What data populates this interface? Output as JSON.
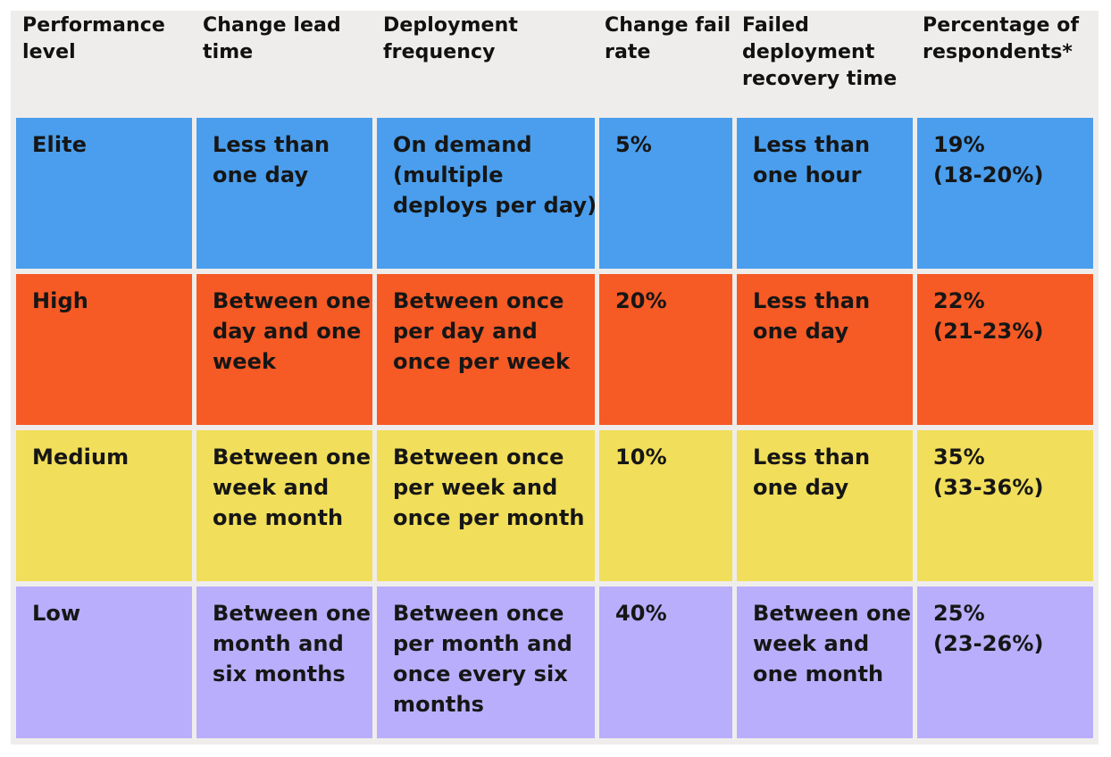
{
  "table": {
    "headers": [
      [
        "Performance",
        "level"
      ],
      [
        "Change lead",
        "time"
      ],
      [
        "Deployment",
        "frequency"
      ],
      [
        "Change fail",
        "rate"
      ],
      [
        "Failed",
        "deployment",
        "recovery time"
      ],
      [
        "Percentage of",
        "respondents*"
      ]
    ],
    "rows": [
      {
        "level": "Elite",
        "color": "#4a9eed",
        "cells": [
          [
            "Elite"
          ],
          [
            "Less than",
            "one day"
          ],
          [
            "On demand",
            "(multiple",
            "deploys per day)"
          ],
          [
            "5%"
          ],
          [
            "Less than",
            "one hour"
          ],
          [
            "19%",
            "(18-20%)"
          ]
        ]
      },
      {
        "level": "High",
        "color": "#f65a25",
        "cells": [
          [
            "High"
          ],
          [
            "Between one",
            "day and one",
            "week"
          ],
          [
            "Between once",
            "per day and",
            "once per week"
          ],
          [
            "20%"
          ],
          [
            "Less than",
            "one day"
          ],
          [
            "22%",
            "(21-23%)"
          ]
        ]
      },
      {
        "level": "Medium",
        "color": "#f1de5a",
        "cells": [
          [
            "Medium"
          ],
          [
            "Between one",
            "week and",
            "one month"
          ],
          [
            "Between once",
            "per week and",
            "once per month"
          ],
          [
            "10%"
          ],
          [
            "Less than",
            "one day"
          ],
          [
            "35%",
            "(33-36%)"
          ]
        ]
      },
      {
        "level": "Low",
        "color": "#b8aefc",
        "cells": [
          [
            "Low"
          ],
          [
            "Between one",
            "month and",
            "six months"
          ],
          [
            "Between once",
            "per month and",
            "once every six",
            "months"
          ],
          [
            "40%"
          ],
          [
            "Between one",
            "week and",
            "one month"
          ],
          [
            "25%",
            "(23-26%)"
          ]
        ]
      }
    ]
  }
}
